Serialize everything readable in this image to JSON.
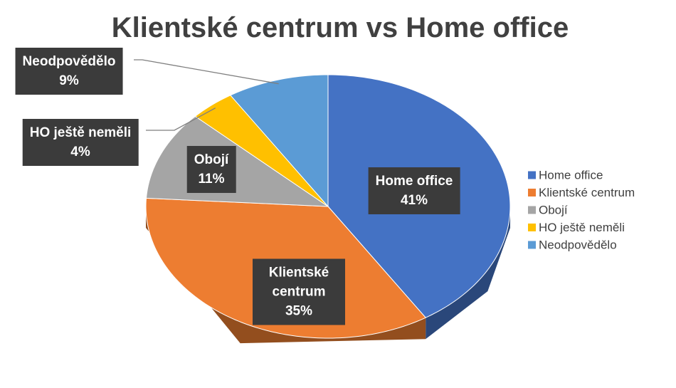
{
  "chart_data": {
    "type": "pie",
    "title": "Klientské centrum vs Home office",
    "categories": [
      "Home office",
      "Klientské centrum",
      "Obojí",
      "HO ještě neměli",
      "Neodpovědělo"
    ],
    "values": [
      41,
      35,
      11,
      4,
      9
    ],
    "value_labels": [
      "41%",
      "35%",
      "11%",
      "4%",
      "9%"
    ],
    "colors": [
      "#4472c4",
      "#ed7d31",
      "#a5a5a5",
      "#ffc000",
      "#5b9bd5"
    ],
    "legend": "right"
  }
}
